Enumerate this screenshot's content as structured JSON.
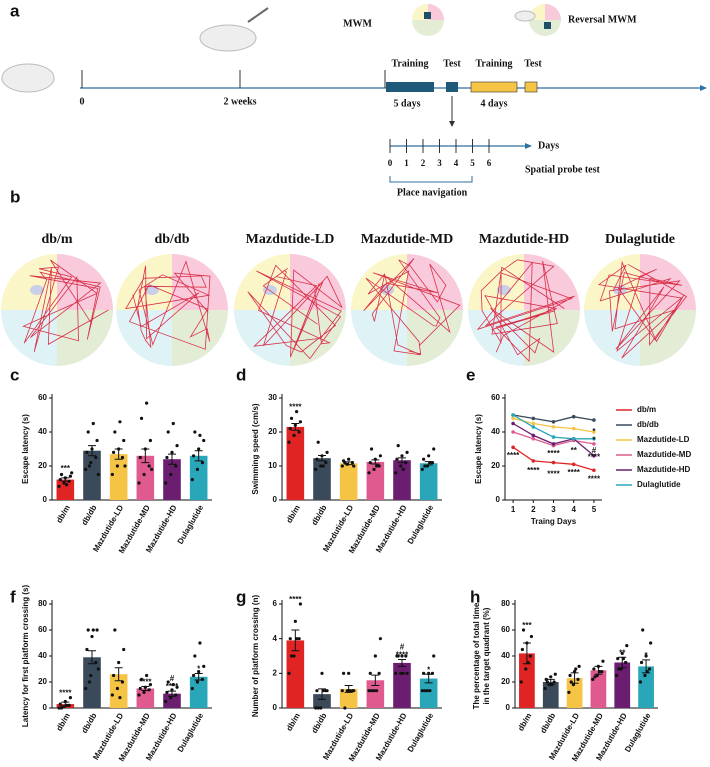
{
  "diagram": {
    "panel": "a",
    "mwm": "MWM",
    "reversal": "Reversal MWM",
    "training1": "Training",
    "test1": "Test",
    "training2": "Training",
    "test2": "Test",
    "start": "0",
    "weeks": "2 weeks",
    "days5": "5 days",
    "days4": "4 days",
    "days_axis": "Days",
    "day_ticks": [
      "0",
      "1",
      "2",
      "3",
      "4",
      "5",
      "6"
    ],
    "probe": "Spatial probe test",
    "navigation": "Place navigation"
  },
  "paths": {
    "panel": "b",
    "groups": [
      "db/m",
      "db/db",
      "Mazdutide-LD",
      "Mazdutide-MD",
      "Mazdutide-HD",
      "Dulaglutide"
    ]
  },
  "chart_data": [
    {
      "type": "bar",
      "panel": "c",
      "y_label": "Escape latency (s)",
      "categories": [
        "db/m",
        "db/db",
        "Mazdutide-LD",
        "Mazdutide-MD",
        "Mazdutide-HD",
        "Dulaglutide"
      ],
      "colors": [
        "#e02424",
        "#3a4a5a",
        "#f6c445",
        "#df5a8e",
        "#6b1d6f",
        "#2aa6b9"
      ],
      "values": [
        12,
        29,
        27,
        26,
        24,
        26
      ],
      "errors": [
        1,
        3,
        3,
        4,
        3,
        3
      ],
      "points": [
        [
          8,
          10,
          11,
          12,
          13,
          14,
          15,
          9,
          16
        ],
        [
          18,
          22,
          25,
          28,
          30,
          35,
          40,
          45,
          15,
          20
        ],
        [
          15,
          20,
          25,
          28,
          30,
          35,
          40,
          46,
          20
        ],
        [
          10,
          15,
          20,
          25,
          30,
          35,
          48,
          57,
          18
        ],
        [
          10,
          15,
          20,
          25,
          28,
          32,
          40,
          45
        ],
        [
          12,
          18,
          22,
          26,
          30,
          35,
          40,
          38
        ]
      ],
      "ylim": [
        0,
        60
      ],
      "yticks": [
        0,
        20,
        40,
        60
      ],
      "annotations": [
        {
          "text": "***",
          "category": 0
        }
      ]
    },
    {
      "type": "bar",
      "panel": "d",
      "y_label": "Swimming speed (cm/s)",
      "categories": [
        "db/m",
        "db/db",
        "Mazdutide-LD",
        "Mazdutide-MD",
        "Mazdutide-HD",
        "Dulaglutide"
      ],
      "colors": [
        "#e02424",
        "#3a4a5a",
        "#f6c445",
        "#df5a8e",
        "#6b1d6f",
        "#2aa6b9"
      ],
      "values": [
        21.5,
        12.3,
        10.8,
        11.2,
        11.7,
        10.8
      ],
      "errors": [
        1,
        0.8,
        0.4,
        0.6,
        0.7,
        0.5
      ],
      "points": [
        [
          17,
          19,
          20,
          21,
          22,
          23,
          24,
          26
        ],
        [
          9,
          10,
          11,
          12,
          13,
          14,
          17,
          10
        ],
        [
          10,
          10.5,
          11,
          11.5,
          12,
          10,
          11
        ],
        [
          8,
          9,
          10,
          11,
          12,
          13,
          15,
          10
        ],
        [
          8,
          10,
          11,
          12,
          13,
          14,
          16,
          9
        ],
        [
          9,
          10,
          11,
          12,
          13,
          15,
          10,
          11
        ]
      ],
      "ylim": [
        0,
        30
      ],
      "yticks": [
        0,
        10,
        20,
        30
      ],
      "annotations": [
        {
          "text": "****",
          "category": 0
        }
      ]
    },
    {
      "type": "line",
      "panel": "e",
      "y_label": "Escape latency (s)",
      "x_label": "Traing Days",
      "x": [
        1,
        2,
        3,
        4,
        5
      ],
      "xlim": [
        0.6,
        5.4
      ],
      "xticks": [
        1,
        2,
        3,
        4,
        5
      ],
      "ylim": [
        0,
        60
      ],
      "yticks": [
        0,
        20,
        40,
        60
      ],
      "series": [
        {
          "name": "db/m",
          "color": "#e02424",
          "values": [
            31,
            23,
            22,
            21,
            17.5
          ]
        },
        {
          "name": "db/db",
          "color": "#3a4a5a",
          "values": [
            50,
            48,
            46,
            49,
            47
          ]
        },
        {
          "name": "Mazdutide-LD",
          "color": "#f6c445",
          "values": [
            48,
            45,
            43,
            42,
            40
          ]
        },
        {
          "name": "Mazdutide-MD",
          "color": "#df5a8e",
          "values": [
            40,
            36,
            32,
            35,
            33
          ]
        },
        {
          "name": "Mazdutide-HD",
          "color": "#6b1d6f",
          "values": [
            45,
            38,
            33,
            36,
            26
          ]
        },
        {
          "name": "Dulaglutide",
          "color": "#2aa6b9",
          "values": [
            50,
            43,
            37,
            36,
            36
          ]
        }
      ],
      "annotations": [
        {
          "text": "****",
          "x": 1,
          "y": 26
        },
        {
          "text": "****",
          "x": 2,
          "y": 17
        },
        {
          "text": "****",
          "x": 3,
          "y": 27
        },
        {
          "text": "****",
          "x": 3,
          "y": 15
        },
        {
          "text": "**",
          "x": 4,
          "y": 29
        },
        {
          "text": "****",
          "x": 4,
          "y": 16
        },
        {
          "text": "*",
          "x": 5,
          "y": 40
        },
        {
          "text": "*",
          "x": 5,
          "y": 35
        },
        {
          "text": "#",
          "x": 5,
          "y": 29
        },
        {
          "text": "****",
          "x": 5,
          "y": 25
        },
        {
          "text": "****",
          "x": 5,
          "y": 12
        }
      ]
    },
    {
      "type": "bar",
      "panel": "f",
      "y_label": "Latency for first platform crossing (s)",
      "categories": [
        "db/m",
        "db/db",
        "Mazdutide-LD",
        "Mazdutide-MD",
        "Mazdutide-HD",
        "Dulaglutide"
      ],
      "colors": [
        "#e02424",
        "#3a4a5a",
        "#f6c445",
        "#df5a8e",
        "#6b1d6f",
        "#2aa6b9"
      ],
      "values": [
        3,
        39,
        26,
        15,
        11,
        24
      ],
      "errors": [
        1.5,
        5,
        5,
        1.5,
        2,
        2.5
      ],
      "points": [
        [
          0,
          1,
          2,
          3,
          5,
          8,
          0,
          2
        ],
        [
          15,
          25,
          35,
          45,
          55,
          60,
          60,
          60,
          30,
          20
        ],
        [
          10,
          15,
          20,
          25,
          35,
          45,
          60,
          8
        ],
        [
          10,
          12,
          14,
          15,
          16,
          18,
          22,
          25
        ],
        [
          5,
          8,
          10,
          12,
          14,
          16,
          20,
          18
        ],
        [
          15,
          20,
          22,
          25,
          28,
          32,
          40,
          50
        ]
      ],
      "ylim": [
        0,
        80
      ],
      "yticks": [
        0,
        20,
        40,
        60,
        80
      ],
      "annotations": [
        {
          "text": "****",
          "category": 0
        },
        {
          "text": "****",
          "category": 3
        },
        {
          "text": "****",
          "category": 4
        },
        {
          "text": "#",
          "category": 4
        },
        {
          "text": "*",
          "category": 5
        }
      ]
    },
    {
      "type": "bar",
      "panel": "g",
      "y_label": "Number of platform crossing (n)",
      "categories": [
        "db/m",
        "db/db",
        "Mazdutide-LD",
        "Mazdutide-MD",
        "Mazdutide-HD",
        "Dulaglutide"
      ],
      "colors": [
        "#e02424",
        "#3a4a5a",
        "#f6c445",
        "#df5a8e",
        "#6b1d6f",
        "#2aa6b9"
      ],
      "values": [
        3.9,
        0.8,
        1.1,
        1.6,
        2.6,
        1.7
      ],
      "errors": [
        0.6,
        0.3,
        0.2,
        0.3,
        0.2,
        0.25
      ],
      "points": [
        [
          2,
          3,
          4,
          4,
          5,
          6,
          3,
          4
        ],
        [
          0,
          0,
          1,
          1,
          2,
          1,
          0,
          1
        ],
        [
          1,
          1,
          1,
          2,
          2,
          1,
          0,
          1
        ],
        [
          1,
          1,
          2,
          2,
          3,
          4,
          1,
          1
        ],
        [
          2,
          2,
          3,
          3,
          3,
          2,
          3,
          2
        ],
        [
          1,
          1,
          2,
          2,
          2,
          3,
          1,
          1
        ]
      ],
      "ylim": [
        0,
        6
      ],
      "yticks": [
        0,
        2,
        4,
        6
      ],
      "annotations": [
        {
          "text": "****",
          "category": 0
        },
        {
          "text": "****",
          "category": 4
        },
        {
          "text": "#",
          "category": 4
        },
        {
          "text": "*",
          "category": 5
        }
      ]
    },
    {
      "type": "bar",
      "panel": "h",
      "y_label": [
        "The percentage of total time",
        "in the target quadrant (%)"
      ],
      "categories": [
        "db/m",
        "db/db",
        "Mazdutide-LD",
        "Mazdutide-MD",
        "Mazdutide-HD",
        "Dulaglutide"
      ],
      "colors": [
        "#e02424",
        "#3a4a5a",
        "#f6c445",
        "#df5a8e",
        "#6b1d6f",
        "#2aa6b9"
      ],
      "values": [
        42,
        20,
        23,
        29,
        35,
        32
      ],
      "errors": [
        8,
        2,
        4,
        3,
        4,
        5
      ],
      "points": [
        [
          20,
          30,
          40,
          45,
          50,
          55,
          60,
          35
        ],
        [
          15,
          18,
          20,
          22,
          24,
          26,
          20,
          18
        ],
        [
          12,
          18,
          22,
          25,
          28,
          32,
          20,
          30
        ],
        [
          22,
          25,
          28,
          30,
          32,
          36,
          24,
          28
        ],
        [
          25,
          30,
          35,
          38,
          42,
          48,
          30,
          38
        ],
        [
          20,
          25,
          30,
          35,
          40,
          50,
          60,
          28
        ]
      ],
      "ylim": [
        0,
        80
      ],
      "yticks": [
        0,
        20,
        40,
        60,
        80
      ],
      "annotations": [
        {
          "text": "***",
          "category": 0
        },
        {
          "text": "**",
          "category": 4
        },
        {
          "text": "*",
          "category": 5
        }
      ]
    }
  ]
}
